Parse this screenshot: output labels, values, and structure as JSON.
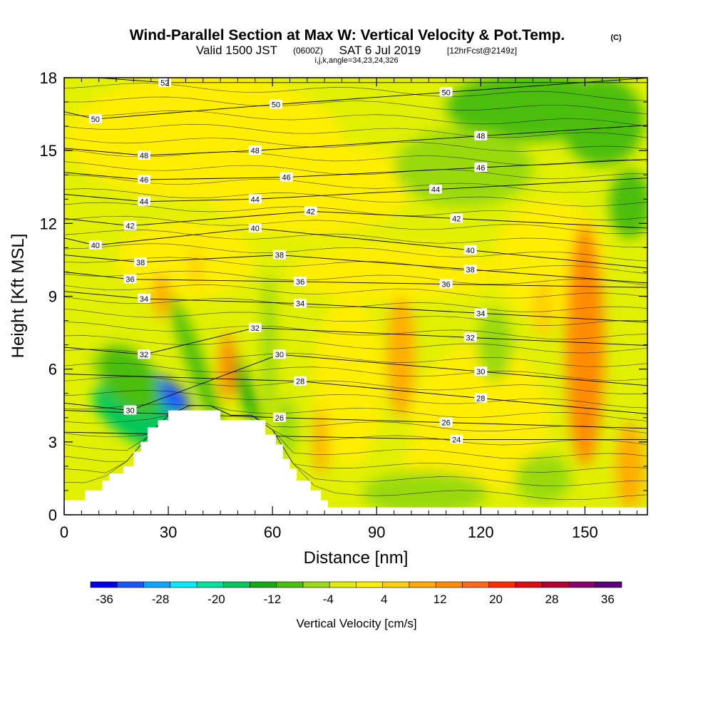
{
  "chart_data": {
    "type": "heatmap",
    "title": "Wind-Parallel Section at Max W: Vertical Velocity & Pot.Temp.",
    "title_tag": "(C)",
    "subtitle_main": "Valid 1500 JST",
    "subtitle_utc": "(0600Z)",
    "subtitle_date": "SAT 6 Jul 2019",
    "subtitle_fcst": "[12hrFcst@2149z]",
    "subtitle_indices": "i,j,k,angle=34,23,24,326",
    "xlabel": "Distance [nm]",
    "ylabel": "Height [Kft MSL]",
    "xlim": [
      0,
      168
    ],
    "ylim": [
      0,
      18
    ],
    "x_ticks": [
      "0",
      "30",
      "60",
      "90",
      "120",
      "150"
    ],
    "x_tick_values": [
      0,
      30,
      60,
      90,
      120,
      150
    ],
    "y_ticks": [
      "0",
      "3",
      "6",
      "9",
      "12",
      "15",
      "18"
    ],
    "y_tick_values": [
      0,
      3,
      6,
      9,
      12,
      15,
      18
    ],
    "colorbar": {
      "label": "Vertical Velocity [cm/s]",
      "range": [
        -38,
        38
      ],
      "tick_labels": [
        "-36",
        "-28",
        "-20",
        "-12",
        "-4",
        "4",
        "12",
        "20",
        "28",
        "36"
      ],
      "tick_values": [
        -36,
        -28,
        -20,
        -12,
        -4,
        4,
        12,
        20,
        28,
        36
      ],
      "colors": [
        "#0000ee",
        "#1f55ff",
        "#0aa6ff",
        "#00eeff",
        "#00e3a0",
        "#00c85a",
        "#18a818",
        "#4cbe10",
        "#9ada10",
        "#e0f000",
        "#ffee00",
        "#ffd000",
        "#ffad00",
        "#ff8c00",
        "#ff6a1a",
        "#ff2c00",
        "#dd0a18",
        "#b40035",
        "#8c006a",
        "#5a007a"
      ]
    },
    "terrain": [
      [
        0,
        0.6
      ],
      [
        6,
        0.6
      ],
      [
        6,
        1.0
      ],
      [
        11,
        1.0
      ],
      [
        11,
        1.4
      ],
      [
        13,
        1.4
      ],
      [
        13,
        1.7
      ],
      [
        17,
        1.7
      ],
      [
        17,
        2.0
      ],
      [
        20,
        2.0
      ],
      [
        20,
        2.6
      ],
      [
        22,
        2.6
      ],
      [
        22,
        3.0
      ],
      [
        24,
        3.0
      ],
      [
        24,
        3.6
      ],
      [
        27,
        3.6
      ],
      [
        27,
        3.9
      ],
      [
        30,
        3.9
      ],
      [
        30,
        4.3
      ],
      [
        38,
        4.3
      ],
      [
        38,
        4.3
      ],
      [
        45,
        4.3
      ],
      [
        45,
        3.9
      ],
      [
        58,
        3.9
      ],
      [
        58,
        3.3
      ],
      [
        61,
        3.3
      ],
      [
        61,
        2.9
      ],
      [
        63,
        2.9
      ],
      [
        63,
        2.3
      ],
      [
        65,
        2.3
      ],
      [
        65,
        1.9
      ],
      [
        67,
        1.9
      ],
      [
        67,
        1.4
      ],
      [
        71,
        1.4
      ],
      [
        71,
        1.0
      ],
      [
        74,
        1.0
      ],
      [
        74,
        0.6
      ],
      [
        76,
        0.6
      ],
      [
        76,
        0.3
      ],
      [
        168,
        0.3
      ]
    ],
    "w_field_note": "vertical velocity shading (cm/s)",
    "w_features": [
      {
        "x": 29,
        "y": 5.0,
        "rx": 4,
        "ry": 1.2,
        "w": -32,
        "angle": 55
      },
      {
        "x": 26,
        "y": 4.0,
        "rx": 3,
        "ry": 1.4,
        "w": -22,
        "angle": 55
      },
      {
        "x": 22,
        "y": 4.0,
        "rx": 7,
        "ry": 2.2,
        "w": -16,
        "angle": 60
      },
      {
        "x": 19,
        "y": 5.6,
        "rx": 7,
        "ry": 1.6,
        "w": -10,
        "angle": 40
      },
      {
        "x": 38,
        "y": 6.2,
        "rx": 2.5,
        "ry": 3.0,
        "w": -11,
        "angle": 20
      },
      {
        "x": 52,
        "y": 5.2,
        "rx": 2.0,
        "ry": 1.8,
        "w": -13,
        "angle": 20
      },
      {
        "x": 59,
        "y": 7.0,
        "rx": 2.0,
        "ry": 3.0,
        "w": -6,
        "angle": 0
      },
      {
        "x": 64,
        "y": 3.6,
        "rx": 3,
        "ry": 1.2,
        "w": -5,
        "angle": 0
      },
      {
        "x": 9,
        "y": 6.2,
        "rx": 1.2,
        "ry": 0.6,
        "w": -7,
        "angle": 0
      },
      {
        "x": 47,
        "y": 6.1,
        "rx": 2.3,
        "ry": 1.4,
        "w": 13,
        "angle": 0
      },
      {
        "x": 28,
        "y": 9.0,
        "rx": 2.5,
        "ry": 0.9,
        "w": 9,
        "angle": 0
      },
      {
        "x": 38,
        "y": 10.2,
        "rx": 2.0,
        "ry": 0.8,
        "w": 7,
        "angle": 0
      },
      {
        "x": 74,
        "y": 3.0,
        "rx": 2.0,
        "ry": 1.4,
        "w": 10,
        "angle": 0
      },
      {
        "x": 97,
        "y": 6.5,
        "rx": 4.0,
        "ry": 2.5,
        "w": 10,
        "angle": 0
      },
      {
        "x": 150,
        "y": 7.0,
        "rx": 5.5,
        "ry": 5.0,
        "w": 12,
        "angle": 0
      },
      {
        "x": 163,
        "y": 2.0,
        "rx": 4.0,
        "ry": 1.8,
        "w": 9,
        "angle": 0
      },
      {
        "x": 138,
        "y": 8.5,
        "rx": 3.0,
        "ry": 1.2,
        "w": 7,
        "angle": 0
      },
      {
        "x": 135,
        "y": 16.8,
        "rx": 25,
        "ry": 1.4,
        "w": -10,
        "angle": 0
      },
      {
        "x": 155,
        "y": 16.2,
        "rx": 12,
        "ry": 1.8,
        "w": -9,
        "angle": 0
      },
      {
        "x": 163,
        "y": 12.8,
        "rx": 6.0,
        "ry": 1.4,
        "w": -8,
        "angle": 0
      },
      {
        "x": 115,
        "y": 14.3,
        "rx": 20,
        "ry": 1.6,
        "w": -5,
        "angle": 0
      },
      {
        "x": 124,
        "y": 7.0,
        "rx": 5.0,
        "ry": 1.5,
        "w": -4,
        "angle": 0
      },
      {
        "x": 104,
        "y": 0.9,
        "rx": 18,
        "ry": 0.9,
        "w": -5,
        "angle": 0
      },
      {
        "x": 138,
        "y": 1.5,
        "rx": 8,
        "ry": 1.0,
        "w": -5,
        "angle": 0
      }
    ],
    "theta_contours_c": [
      24,
      26,
      28,
      30,
      32,
      34,
      36,
      38,
      40,
      42,
      44,
      46,
      48,
      50,
      52
    ],
    "contour_labels": [
      {
        "text": "52",
        "x": 29,
        "y": 17.8
      },
      {
        "text": "50",
        "x": 9,
        "y": 16.3
      },
      {
        "text": "50",
        "x": 61,
        "y": 16.9
      },
      {
        "text": "50",
        "x": 110,
        "y": 17.4
      },
      {
        "text": "48",
        "x": 23,
        "y": 14.8
      },
      {
        "text": "48",
        "x": 55,
        "y": 15.0
      },
      {
        "text": "48",
        "x": 120,
        "y": 15.6
      },
      {
        "text": "46",
        "x": 23,
        "y": 13.8
      },
      {
        "text": "46",
        "x": 64,
        "y": 13.9
      },
      {
        "text": "46",
        "x": 120,
        "y": 14.3
      },
      {
        "text": "44",
        "x": 23,
        "y": 12.9
      },
      {
        "text": "44",
        "x": 55,
        "y": 13.0
      },
      {
        "text": "44",
        "x": 107,
        "y": 13.4
      },
      {
        "text": "42",
        "x": 19,
        "y": 11.9
      },
      {
        "text": "42",
        "x": 71,
        "y": 12.5
      },
      {
        "text": "42",
        "x": 113,
        "y": 12.2
      },
      {
        "text": "40",
        "x": 9,
        "y": 11.1
      },
      {
        "text": "40",
        "x": 55,
        "y": 11.8
      },
      {
        "text": "40",
        "x": 117,
        "y": 10.9
      },
      {
        "text": "38",
        "x": 22,
        "y": 10.4
      },
      {
        "text": "38",
        "x": 62,
        "y": 10.7
      },
      {
        "text": "38",
        "x": 117,
        "y": 10.1
      },
      {
        "text": "36",
        "x": 19,
        "y": 9.7
      },
      {
        "text": "36",
        "x": 68,
        "y": 9.6
      },
      {
        "text": "36",
        "x": 110,
        "y": 9.5
      },
      {
        "text": "34",
        "x": 23,
        "y": 8.9
      },
      {
        "text": "34",
        "x": 68,
        "y": 8.7
      },
      {
        "text": "34",
        "x": 120,
        "y": 8.3
      },
      {
        "text": "32",
        "x": 23,
        "y": 6.6
      },
      {
        "text": "32",
        "x": 55,
        "y": 7.7
      },
      {
        "text": "32",
        "x": 117,
        "y": 7.3
      },
      {
        "text": "30",
        "x": 19,
        "y": 4.3
      },
      {
        "text": "30",
        "x": 62,
        "y": 6.6
      },
      {
        "text": "30",
        "x": 120,
        "y": 5.9
      },
      {
        "text": "28",
        "x": 68,
        "y": 5.5
      },
      {
        "text": "28",
        "x": 120,
        "y": 4.8
      },
      {
        "text": "26",
        "x": 62,
        "y": 4.0
      },
      {
        "text": "26",
        "x": 110,
        "y": 3.8
      },
      {
        "text": "24",
        "x": 113,
        "y": 3.1
      }
    ],
    "grid": false
  }
}
